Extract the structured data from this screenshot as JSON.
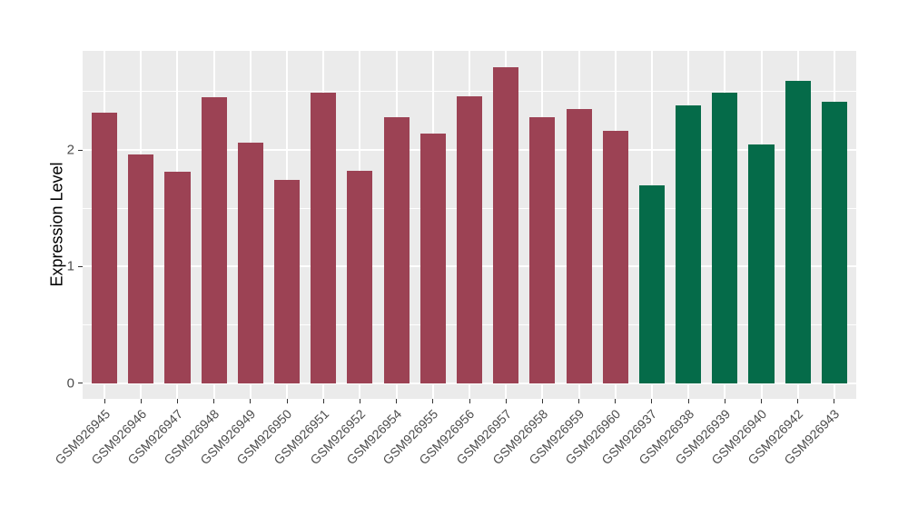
{
  "chart_data": {
    "type": "bar",
    "title": "",
    "xlabel": "",
    "ylabel": "Expression Level",
    "categories": [
      "GSM926945",
      "GSM926946",
      "GSM926947",
      "GSM926948",
      "GSM926949",
      "GSM926950",
      "GSM926951",
      "GSM926952",
      "GSM926954",
      "GSM926955",
      "GSM926956",
      "GSM926957",
      "GSM926958",
      "GSM926959",
      "GSM926960",
      "GSM926937",
      "GSM926938",
      "GSM926939",
      "GSM926940",
      "GSM926942",
      "GSM926943"
    ],
    "values": [
      2.32,
      1.96,
      1.81,
      2.45,
      2.06,
      1.74,
      2.49,
      1.82,
      2.28,
      2.14,
      2.46,
      2.71,
      2.28,
      2.35,
      2.16,
      1.7,
      2.38,
      2.49,
      2.05,
      2.59,
      2.41
    ],
    "bar_group_index": [
      0,
      0,
      0,
      0,
      0,
      0,
      0,
      0,
      0,
      0,
      0,
      0,
      0,
      0,
      0,
      1,
      1,
      1,
      1,
      1,
      1
    ],
    "group_colors": [
      "#9c4254",
      "#056b49"
    ],
    "yticks": [
      0,
      1,
      2
    ],
    "yticks_minor": [
      0.5,
      1.5,
      2.5
    ],
    "ylim": [
      -0.14,
      2.84
    ],
    "grid": "on",
    "legend": "none",
    "panel_background": "#ebebeb",
    "grid_color": "#ffffff",
    "tick_color": "#333333",
    "axis_text_color": "#4d4d4d"
  }
}
